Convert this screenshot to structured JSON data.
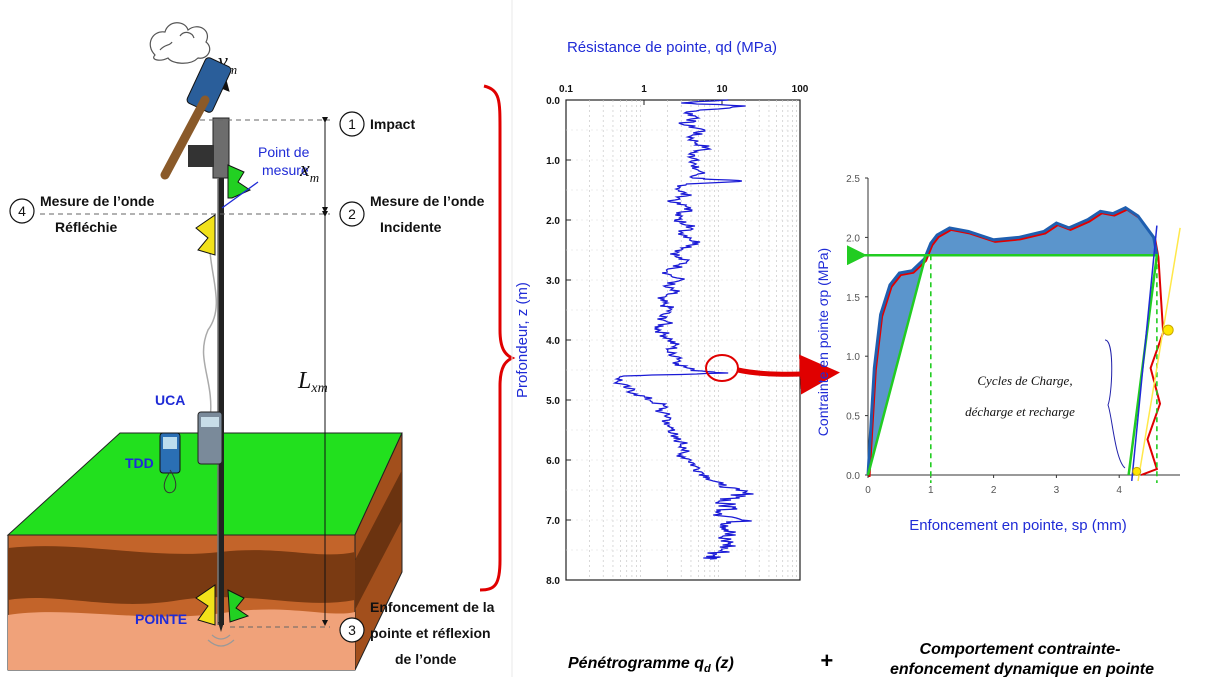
{
  "left_diagram": {
    "velocity_label": "v",
    "velocity_sub": "m",
    "step1": {
      "num": "1",
      "label": "Impact"
    },
    "step2": {
      "num": "2",
      "label_line1": "Mesure de l’onde",
      "label_line2": "Incidente"
    },
    "step3": {
      "num": "3",
      "label_line1": "Enfoncement de la",
      "label_line2": "pointe et réflexion",
      "label_line3": "de l’onde"
    },
    "step4": {
      "num": "4",
      "label_line1": "Mesure de l’onde",
      "label_line2": "Réfléchie"
    },
    "measure_point_line1": "Point de",
    "measure_point_line2": "mesure",
    "xm_label": "x",
    "xm_sub": "m",
    "lxm_label": "L",
    "lxm_sub": "xm",
    "uca": "UCA",
    "tdd": "TDD",
    "pointe": "POINTE",
    "colors": {
      "ground_top": "#22e01e",
      "soil_dark": "#8a4216",
      "soil_light": "#e98f62",
      "accent_blue": "#1f2bd6"
    }
  },
  "chart_penetro": {
    "title": "Résistance de pointe, qd (MPa)",
    "ylabel": "Profondeur, z (m)"
  },
  "chart_stress": {
    "ylabel": "Contrainte en pointe σp (MPa)",
    "xlabel": "Enfoncement en pointe, sp (mm)",
    "annotation_line1": "Cycles de Charge,",
    "annotation_line2": "décharge et recharge"
  },
  "captions": {
    "penetro_main": "Pénétrogramme q",
    "penetro_sub": "d",
    "penetro_tail": " (z)",
    "plus": "+",
    "behaviour_line1": "Comportement contrainte-",
    "behaviour_line2": "enfoncement dynamique en pointe"
  },
  "chart_data": [
    {
      "type": "line",
      "title": "Résistance de pointe, qd (MPa)",
      "xlabel": "Résistance de pointe, qd (MPa)",
      "ylabel": "Profondeur, z (m)",
      "x_scale": "log",
      "xlim": [
        0.1,
        100
      ],
      "ylim": [
        8.0,
        0.0
      ],
      "x_ticks": [
        "0.1",
        "1",
        "10",
        "100"
      ],
      "y_ticks": [
        "0.0",
        "1.0",
        "2.0",
        "3.0",
        "4.0",
        "5.0",
        "6.0",
        "7.0",
        "8.0"
      ],
      "series": [
        {
          "depth": [
            0.0,
            0.05,
            0.1,
            0.2,
            0.3,
            0.4,
            0.5,
            0.6,
            0.7,
            0.8,
            0.9,
            1.0,
            1.1,
            1.2,
            1.3,
            1.35,
            1.4,
            1.5,
            1.6,
            1.7,
            1.8,
            1.9,
            2.0,
            2.1,
            2.2,
            2.3,
            2.4,
            2.5,
            2.6,
            2.7,
            2.8,
            2.9,
            3.0,
            3.1,
            3.2,
            3.3,
            3.4,
            3.5,
            3.6,
            3.7,
            3.8,
            3.9,
            4.0,
            4.1,
            4.2,
            4.3,
            4.4,
            4.5,
            4.55,
            4.6,
            4.7,
            4.8,
            4.9,
            5.0,
            5.1,
            5.2,
            5.3,
            5.4,
            5.5,
            5.6,
            5.7,
            5.8,
            5.9,
            6.0,
            6.1,
            6.2,
            6.3,
            6.4,
            6.5,
            6.6,
            6.7,
            6.8,
            6.9,
            7.0,
            7.1,
            7.2,
            7.3,
            7.4,
            7.5,
            7.6,
            7.65
          ],
          "qd": [
            12.0,
            3.0,
            20.0,
            3.5,
            5.0,
            3.0,
            6.0,
            4.0,
            4.5,
            6.5,
            3.8,
            5.0,
            4.0,
            5.5,
            4.2,
            18.0,
            3.5,
            2.8,
            3.5,
            2.2,
            4.0,
            3.0,
            2.5,
            4.5,
            3.0,
            4.0,
            5.0,
            3.0,
            2.5,
            3.5,
            2.5,
            2.0,
            3.0,
            1.8,
            2.5,
            1.5,
            1.8,
            2.2,
            1.6,
            2.0,
            1.5,
            1.8,
            2.2,
            2.5,
            2.0,
            3.0,
            2.8,
            4.0,
            12.0,
            0.55,
            0.45,
            0.6,
            0.8,
            1.2,
            1.8,
            1.6,
            2.2,
            1.8,
            2.5,
            2.2,
            3.0,
            3.5,
            2.8,
            4.0,
            4.5,
            5.5,
            7.0,
            9.0,
            15.0,
            20.0,
            9.0,
            14.0,
            10.0,
            18.0,
            12.0,
            15.0,
            9.0,
            13.0,
            10.0,
            8.0,
            7.0
          ]
        }
      ]
    },
    {
      "type": "line",
      "xlabel": "Enfoncement en pointe, sp (mm)",
      "ylabel": "Contrainte en pointe σp (MPa)",
      "xlim": [
        0,
        5
      ],
      "ylim": [
        0,
        2.5
      ],
      "x_ticks": [
        "0",
        "1",
        "2",
        "3",
        "4"
      ],
      "y_ticks": [
        "0.0",
        "0.5",
        "1.0",
        "1.5",
        "2.0",
        "2.5"
      ],
      "annotation": "Cycles de Charge, décharge et recharge",
      "series": [
        {
          "sp": [
            0.0,
            0.1,
            0.2,
            0.35,
            0.5,
            0.7,
            0.9,
            1.0,
            1.1,
            1.3,
            1.6,
            2.0,
            2.4,
            2.8,
            3.0,
            3.2,
            3.5,
            3.7,
            3.9,
            4.1,
            4.3,
            4.55,
            4.6
          ],
          "sigma": [
            0.0,
            0.9,
            1.35,
            1.6,
            1.7,
            1.72,
            1.82,
            1.95,
            2.02,
            2.08,
            2.05,
            1.98,
            2.0,
            2.05,
            2.12,
            2.08,
            2.15,
            2.22,
            2.2,
            2.25,
            2.18,
            2.0,
            1.85
          ]
        }
      ],
      "reference_lines": {
        "horizontal_level": 1.85,
        "vertical_marks": [
          1.0,
          4.6
        ]
      }
    }
  ]
}
